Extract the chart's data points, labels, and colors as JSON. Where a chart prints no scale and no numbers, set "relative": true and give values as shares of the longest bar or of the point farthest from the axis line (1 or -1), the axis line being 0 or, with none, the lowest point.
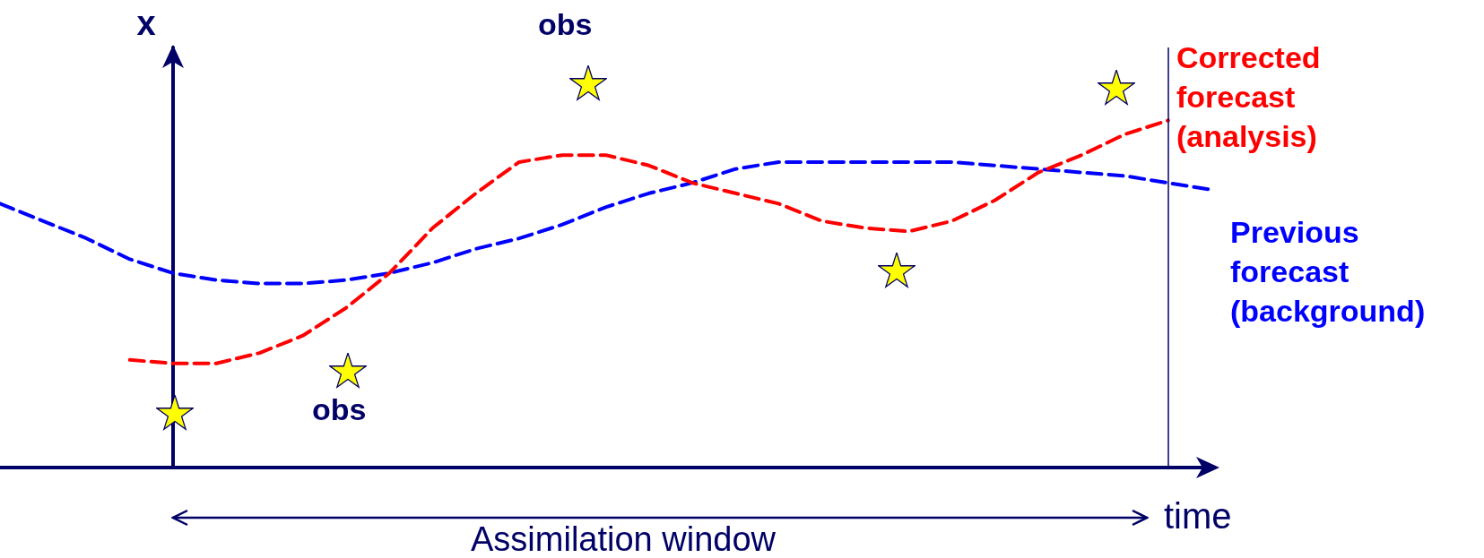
{
  "chart_data": {
    "type": "line",
    "relative": true,
    "ylabel": "x",
    "xlabel": "time",
    "line_style": "dashed",
    "marker": "none",
    "legend": "right",
    "grid": false,
    "categories": [
      null,
      null,
      null,
      null,
      null,
      null,
      null,
      null,
      null,
      null,
      null,
      null,
      null,
      null,
      null,
      null,
      null,
      null,
      null,
      null,
      null,
      null,
      null,
      null,
      null,
      null,
      null,
      null,
      null
    ],
    "series": [
      {
        "name": "Previous forecast (background)",
        "color": "#0000ff",
        "values": [
          0.76,
          0.71,
          0.66,
          0.6,
          0.56,
          0.54,
          0.53,
          0.53,
          0.54,
          0.56,
          0.59,
          0.63,
          0.66,
          0.7,
          0.75,
          0.79,
          0.82,
          0.86,
          0.88,
          0.88,
          0.88,
          0.88,
          0.88,
          0.87,
          0.86,
          0.85,
          0.84,
          0.82,
          0.8
        ]
      },
      {
        "name": "Corrected forecast (analysis)",
        "color": "#ff0000",
        "values": [
          null,
          null,
          null,
          0.31,
          0.3,
          0.3,
          0.33,
          0.38,
          0.46,
          0.56,
          0.69,
          0.79,
          0.88,
          0.9,
          0.9,
          0.87,
          0.82,
          0.79,
          0.76,
          0.71,
          0.69,
          0.68,
          0.71,
          0.77,
          0.85,
          0.9,
          0.96,
          1,
          null
        ]
      }
    ],
    "annotations": [
      "obs",
      "obs",
      "Assimilation window"
    ]
  }
}
